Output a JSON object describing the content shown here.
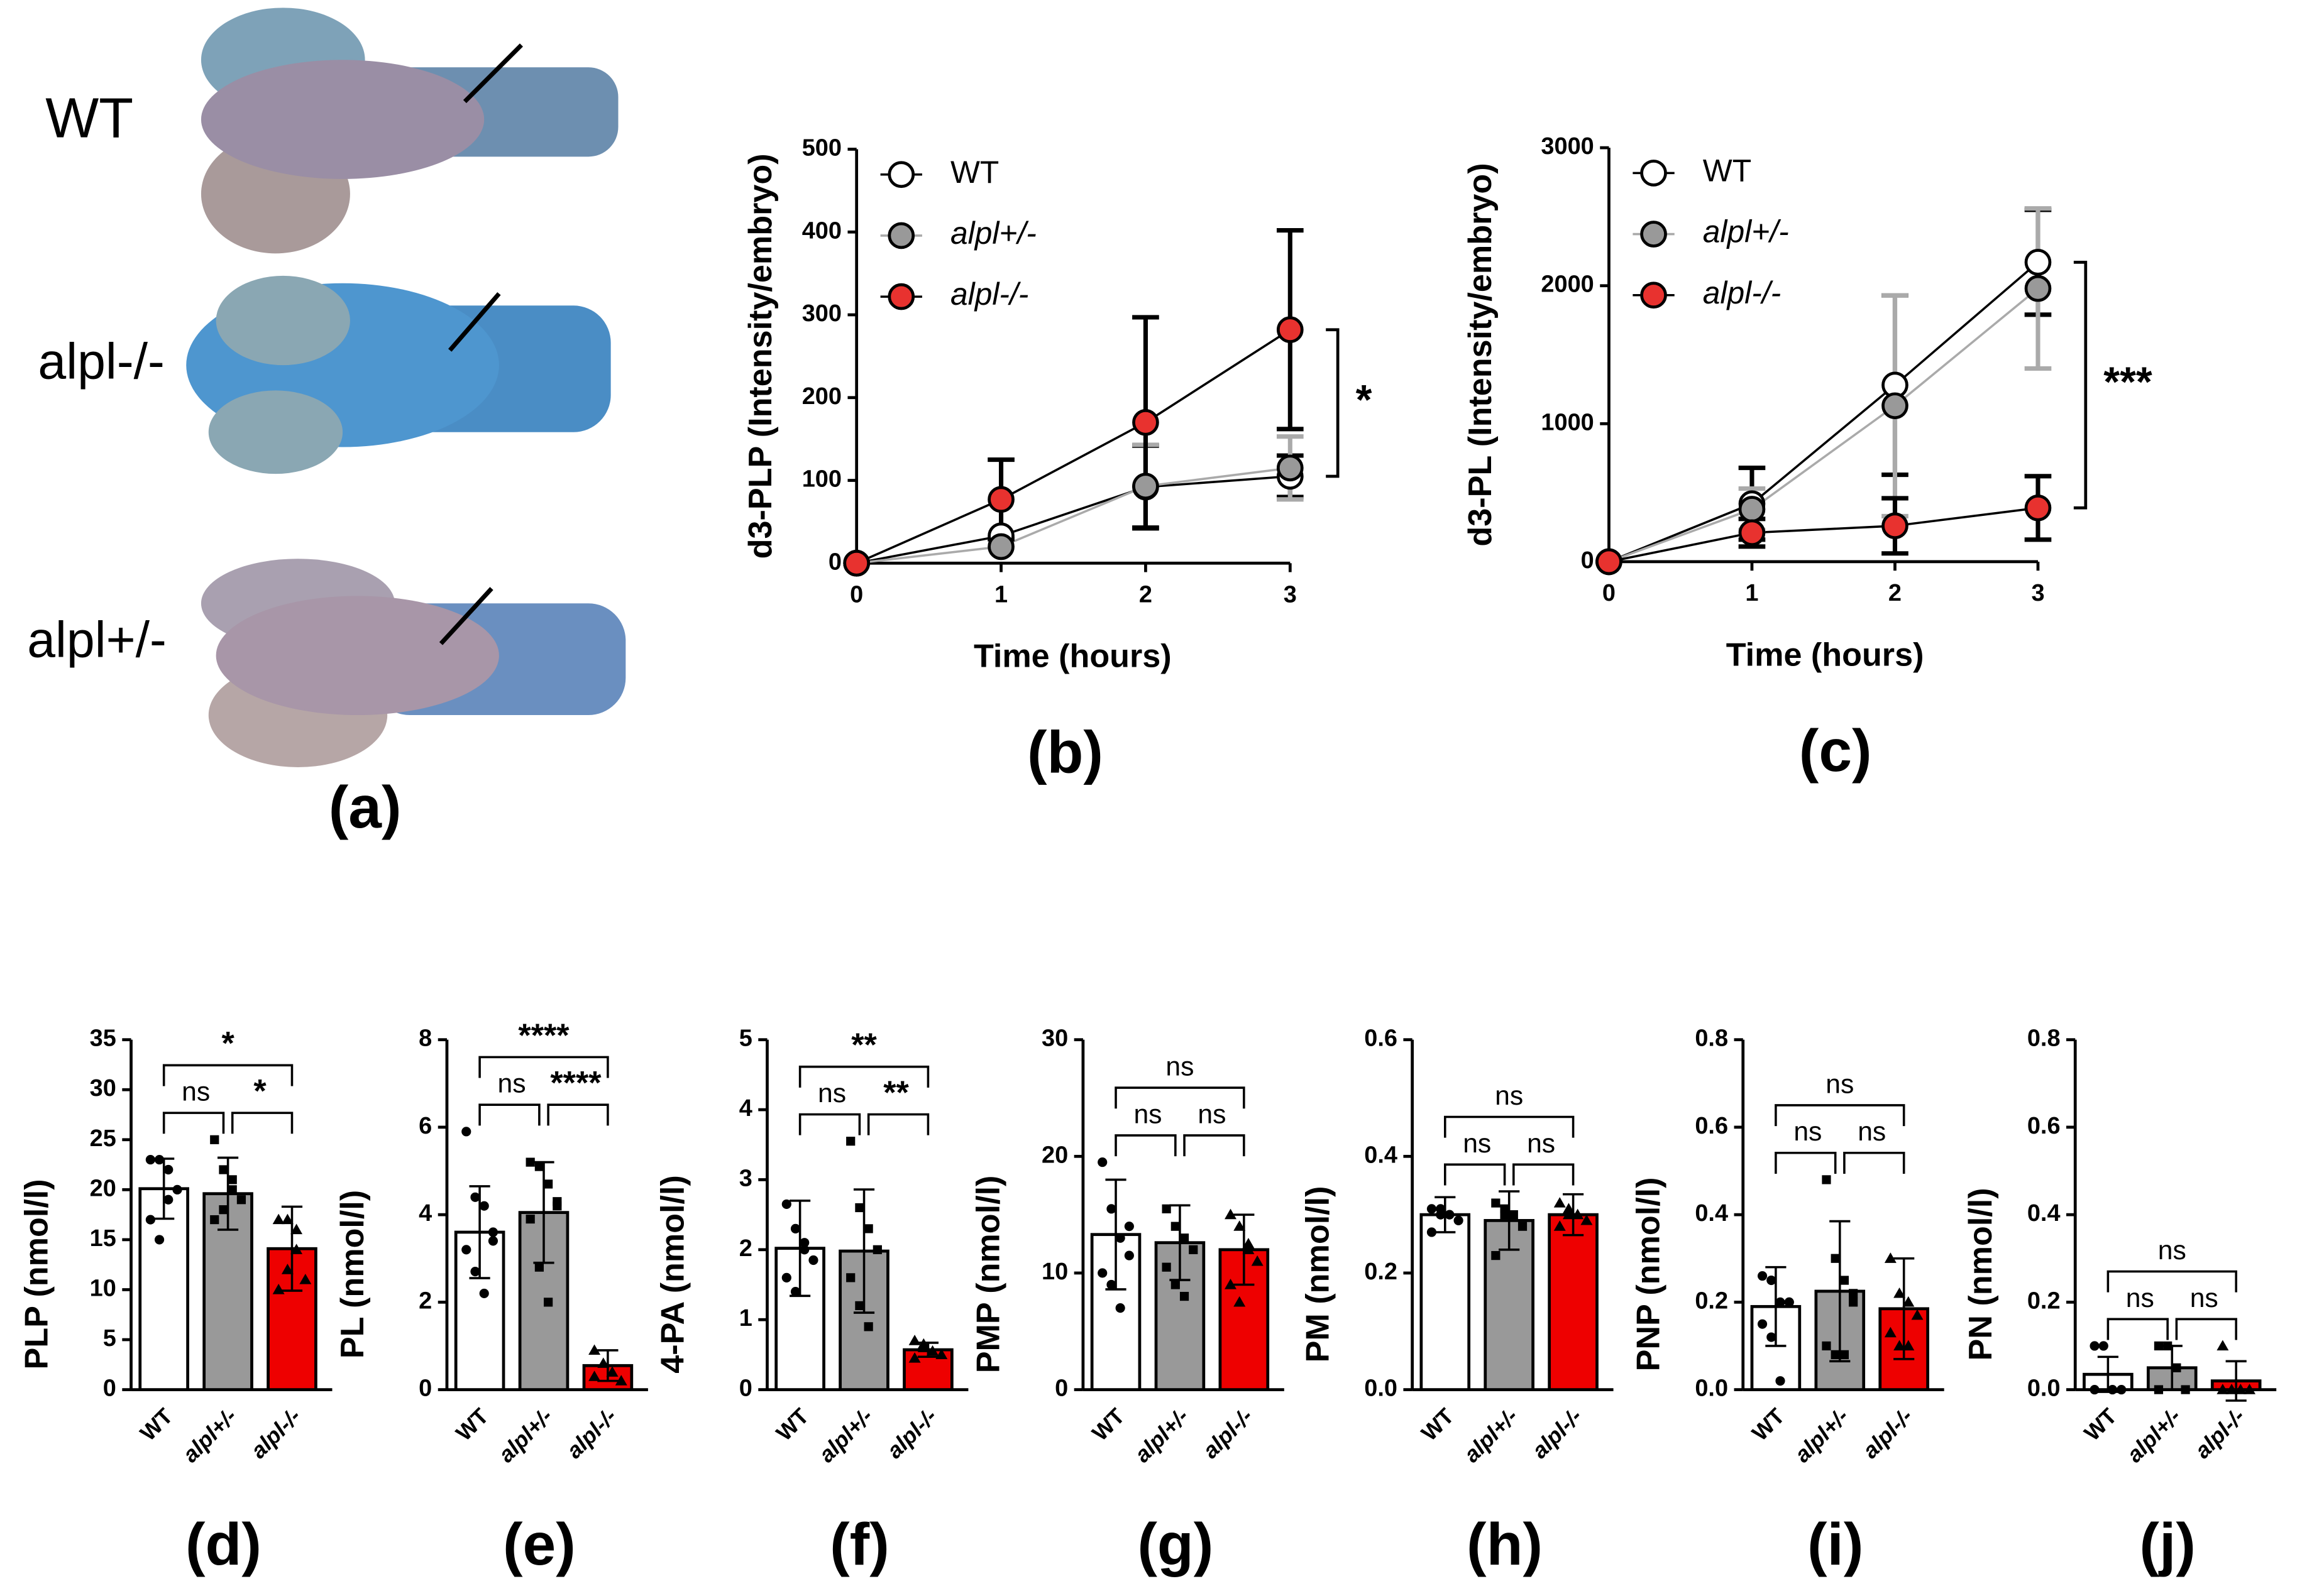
{
  "image_panel": {
    "labels": [
      "WT",
      "alpl-/-",
      "alpl+/-"
    ],
    "panel_label": "(a)"
  },
  "chart_data": [
    {
      "type": "line",
      "panel_label": "(b)",
      "y_label": "d3-PLP (Intensity/embryo)",
      "x_label": "Time (hours)",
      "x": [
        0,
        1,
        2,
        3
      ],
      "xlim": [
        0,
        3
      ],
      "xticks": [
        0,
        1,
        2,
        3
      ],
      "ylim": [
        0,
        500
      ],
      "yticks": [
        0,
        100,
        200,
        300,
        400,
        500
      ],
      "annotation": "*",
      "series": [
        {
          "name": "WT",
          "color": "#ffffff",
          "line_color": "#000000",
          "values": [
            0,
            33,
            92,
            105
          ],
          "errors": [
            0,
            0,
            50,
            25
          ]
        },
        {
          "name": "alpl+/-",
          "color": "#999999",
          "line_color": "#aaaaaa",
          "values": [
            0,
            20,
            93,
            115
          ],
          "errors": [
            0,
            0,
            50,
            38
          ]
        },
        {
          "name": "alpl-/-",
          "color": "#e8322f",
          "line_color": "#000000",
          "values": [
            0,
            77,
            170,
            282
          ],
          "errors": [
            0,
            48,
            127,
            120
          ]
        }
      ]
    },
    {
      "type": "line",
      "panel_label": "(c)",
      "y_label": "d3-PL (Intensity/embryo)",
      "x_label": "Time (hours)",
      "x": [
        0,
        1,
        2,
        3
      ],
      "xlim": [
        0,
        3
      ],
      "xticks": [
        0,
        1,
        2,
        3
      ],
      "ylim": [
        0,
        3000
      ],
      "yticks": [
        0,
        1000,
        2000,
        3000
      ],
      "annotation": "***",
      "series": [
        {
          "name": "WT",
          "color": "#ffffff",
          "line_color": "#000000",
          "values": [
            0,
            420,
            1280,
            2170
          ],
          "errors": [
            0,
            260,
            650,
            380
          ]
        },
        {
          "name": "alpl+/-",
          "color": "#999999",
          "line_color": "#aaaaaa",
          "values": [
            0,
            380,
            1130,
            1980
          ],
          "errors": [
            0,
            150,
            800,
            580
          ]
        },
        {
          "name": "alpl-/-",
          "color": "#e8322f",
          "line_color": "#000000",
          "values": [
            0,
            210,
            260,
            390
          ],
          "errors": [
            0,
            100,
            200,
            230
          ]
        }
      ]
    },
    {
      "type": "bar",
      "panel_label": "(d)",
      "y_label": "PLP (nmol/l)",
      "categories": [
        "WT",
        "alpl+/-",
        "alpl-/-"
      ],
      "colors": [
        "#ffffff",
        "#999999",
        "#ee0000"
      ],
      "ylim": [
        0,
        35
      ],
      "yticks": [
        0,
        5,
        10,
        15,
        20,
        25,
        30,
        35
      ],
      "values": [
        20.1,
        19.6,
        14.1
      ],
      "errors": [
        3,
        3.6,
        4.2
      ],
      "comparisons": [
        "ns",
        "*",
        "*"
      ],
      "points": [
        [
          23,
          23,
          22,
          20,
          17,
          15,
          19
        ],
        [
          25,
          22,
          20,
          19,
          17,
          18,
          21
        ],
        [
          17,
          17,
          14,
          11,
          10,
          12,
          16
        ]
      ]
    },
    {
      "type": "bar",
      "panel_label": "(e)",
      "y_label": "PL (nmol/l)",
      "categories": [
        "WT",
        "alpl+/-",
        "alpl-/-"
      ],
      "colors": [
        "#ffffff",
        "#999999",
        "#ee0000"
      ],
      "ylim": [
        0,
        8
      ],
      "yticks": [
        0,
        2,
        4,
        6,
        8
      ],
      "values": [
        3.6,
        4.05,
        0.55
      ],
      "errors": [
        1.05,
        1.15,
        0.35
      ],
      "comparisons": [
        "ns",
        "****",
        "****"
      ],
      "points": [
        [
          5.9,
          4.4,
          4.2,
          3.6,
          3.2,
          2.7,
          2.2,
          3.4
        ],
        [
          5.2,
          5.1,
          4.7,
          4.2,
          3.9,
          2.8,
          2.0,
          4.3
        ],
        [
          0.9,
          0.6,
          0.4,
          0.2,
          0.3
        ]
      ]
    },
    {
      "type": "bar",
      "panel_label": "(f)",
      "y_label": "4-PA (nmol/l)",
      "categories": [
        "WT",
        "alpl+/-",
        "alpl-/-"
      ],
      "colors": [
        "#ffffff",
        "#999999",
        "#ee0000"
      ],
      "ylim": [
        0,
        5
      ],
      "yticks": [
        0,
        1,
        2,
        3,
        4,
        5
      ],
      "values": [
        2.02,
        1.98,
        0.57
      ],
      "errors": [
        0.68,
        0.88,
        0.1
      ],
      "comparisons": [
        "ns",
        "**",
        "**"
      ],
      "points": [
        [
          2.65,
          2.3,
          2.0,
          1.85,
          1.6,
          1.4,
          2.1
        ],
        [
          3.55,
          2.6,
          2.3,
          2.0,
          1.6,
          1.2,
          0.9
        ],
        [
          0.7,
          0.65,
          0.55,
          0.5,
          0.45,
          0.6
        ]
      ]
    },
    {
      "type": "bar",
      "panel_label": "(g)",
      "y_label": "PMP (nmol/l)",
      "categories": [
        "WT",
        "alpl+/-",
        "alpl-/-"
      ],
      "colors": [
        "#ffffff",
        "#999999",
        "#ee0000"
      ],
      "ylim": [
        0,
        30
      ],
      "yticks": [
        0,
        10,
        20,
        30
      ],
      "values": [
        13.3,
        12.6,
        12.0
      ],
      "errors": [
        4.7,
        3.2,
        3.0
      ],
      "comparisons": [
        "ns",
        "ns",
        "ns"
      ],
      "points": [
        [
          19.5,
          15.5,
          13,
          11.5,
          10,
          9,
          7,
          14
        ],
        [
          15.5,
          14,
          13,
          12,
          10.5,
          9,
          8
        ],
        [
          15,
          14,
          12.5,
          11,
          9,
          7.5,
          12
        ]
      ]
    },
    {
      "type": "bar",
      "panel_label": "(h)",
      "y_label": "PM (nmol/l)",
      "categories": [
        "WT",
        "alpl+/-",
        "alpl-/-"
      ],
      "colors": [
        "#ffffff",
        "#999999",
        "#ee0000"
      ],
      "ylim": [
        0,
        0.6
      ],
      "yticks": [
        {
          "value": 0,
          "label": "0.0"
        },
        0.2,
        0.4,
        0.6
      ],
      "values": [
        0.3,
        0.29,
        0.3
      ],
      "errors": [
        0.03,
        0.05,
        0.035
      ],
      "comparisons": [
        "ns",
        "ns",
        "ns"
      ],
      "points": [
        [
          0.31,
          0.31,
          0.3,
          0.29,
          0.27,
          0.3
        ],
        [
          0.32,
          0.31,
          0.3,
          0.28,
          0.23,
          0.3
        ],
        [
          0.32,
          0.3,
          0.3,
          0.29,
          0.28,
          0.31
        ]
      ]
    },
    {
      "type": "bar",
      "panel_label": "(i)",
      "y_label": "PNP (nmol/l)",
      "categories": [
        "WT",
        "alpl+/-",
        "alpl-/-"
      ],
      "colors": [
        "#ffffff",
        "#999999",
        "#ee0000"
      ],
      "ylim": [
        0,
        0.8
      ],
      "yticks": [
        {
          "value": 0,
          "label": "0.0"
        },
        0.2,
        0.4,
        0.6,
        0.8
      ],
      "values": [
        0.19,
        0.225,
        0.185
      ],
      "errors": [
        0.09,
        0.16,
        0.115
      ],
      "comparisons": [
        "ns",
        "ns",
        "ns"
      ],
      "points": [
        [
          0.26,
          0.25,
          0.2,
          0.2,
          0.15,
          0.12,
          0.02,
          0.2
        ],
        [
          0.48,
          0.3,
          0.25,
          0.2,
          0.1,
          0.08,
          0.08,
          0.22
        ],
        [
          0.3,
          0.22,
          0.2,
          0.17,
          0.13,
          0.1,
          0.1
        ]
      ]
    },
    {
      "type": "bar",
      "panel_label": "(j)",
      "y_label": "PN (nmol/l)",
      "categories": [
        "WT",
        "alpl+/-",
        "alpl-/-"
      ],
      "colors": [
        "#ffffff",
        "#999999",
        "#ee0000"
      ],
      "ylim": [
        0,
        0.8
      ],
      "yticks": [
        {
          "value": 0,
          "label": "0.0"
        },
        0.2,
        0.4,
        0.6,
        0.8
      ],
      "values": [
        0.035,
        0.05,
        0.02
      ],
      "errors": [
        0.04,
        0.05,
        0.045
      ],
      "comparisons": [
        "ns",
        "ns",
        "ns"
      ],
      "points": [
        [
          0.1,
          0.1,
          0,
          0,
          0
        ],
        [
          0.1,
          0.1,
          0.05,
          0,
          0
        ],
        [
          0.1,
          0,
          0,
          0,
          0
        ]
      ]
    }
  ]
}
